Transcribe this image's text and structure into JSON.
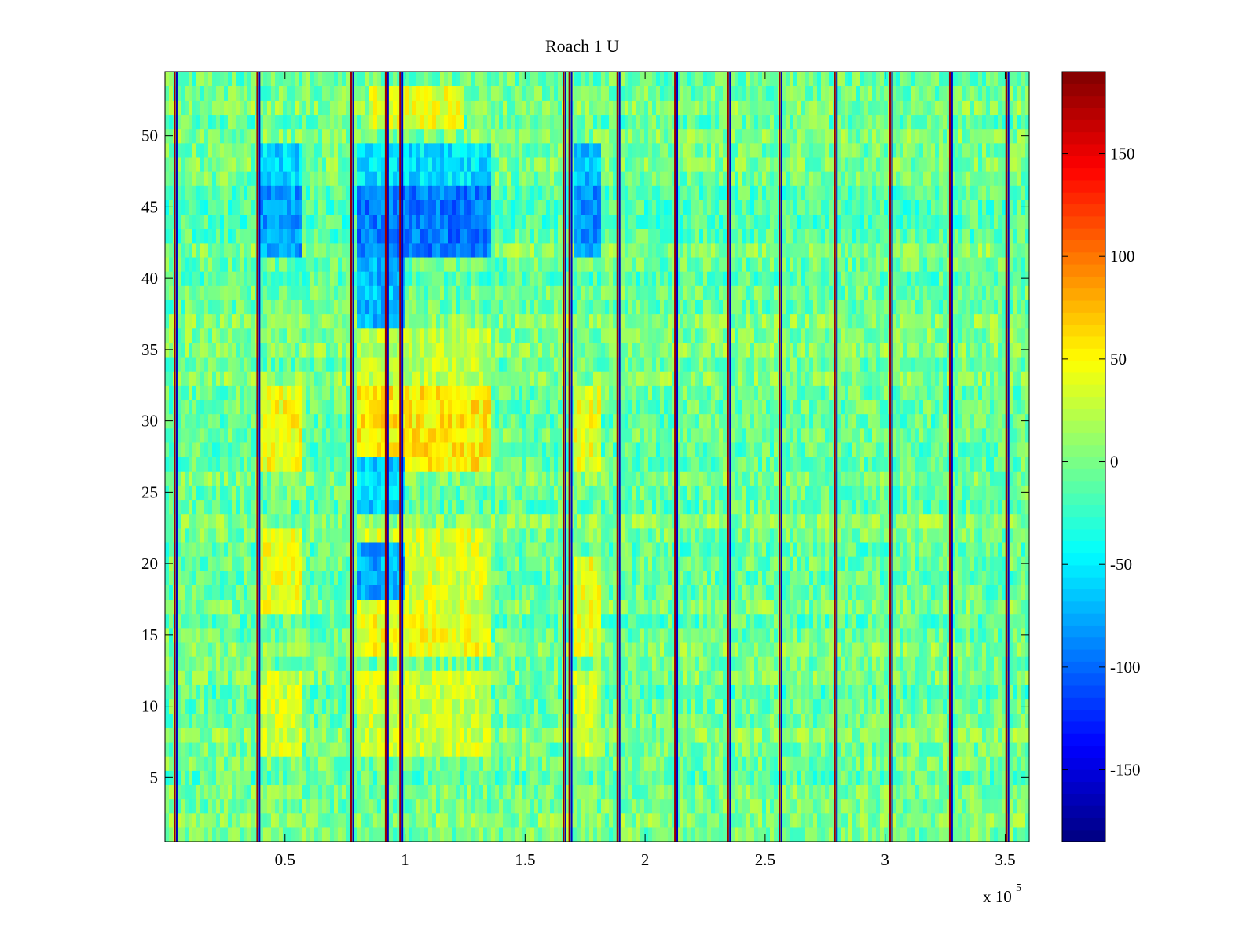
{
  "chart_data": {
    "type": "heatmap",
    "title": "Roach 1 U",
    "xlabel": "",
    "ylabel": "",
    "x_multiplier_label": "x 10",
    "x_multiplier_exponent": "5",
    "xlim": [
      0,
      3.6
    ],
    "ylim": [
      0.5,
      54.5
    ],
    "x_ticks": [
      0.5,
      1,
      1.5,
      2,
      2.5,
      3,
      3.5
    ],
    "x_tick_labels": [
      "0.5",
      "1",
      "1.5",
      "2",
      "2.5",
      "3",
      "3.5"
    ],
    "y_ticks": [
      5,
      10,
      15,
      20,
      25,
      30,
      35,
      40,
      45,
      50
    ],
    "y_tick_labels": [
      "5",
      "10",
      "15",
      "20",
      "25",
      "30",
      "35",
      "40",
      "45",
      "50"
    ],
    "rows": 54,
    "colormap": "jet",
    "clim": [
      -185,
      190
    ],
    "colorbar": {
      "ticks": [
        -150,
        -100,
        -50,
        0,
        50,
        100,
        150
      ],
      "tick_labels": [
        "-150",
        "-100",
        "-50",
        "0",
        "50",
        "100",
        "150"
      ]
    },
    "baseline_value": -5,
    "event_lines_x": [
      0.045,
      0.39,
      0.78,
      0.925,
      0.985,
      1.665,
      1.69,
      1.89,
      2.13,
      2.35,
      2.565,
      2.795,
      3.025,
      3.275,
      3.51
    ],
    "regions": [
      {
        "x": [
          0.4,
          0.58
        ],
        "y": [
          27,
          32
        ],
        "value": 45
      },
      {
        "x": [
          0.4,
          0.58
        ],
        "y": [
          17,
          22
        ],
        "value": 40
      },
      {
        "x": [
          0.4,
          0.58
        ],
        "y": [
          7,
          12
        ],
        "value": 30
      },
      {
        "x": [
          0.4,
          0.58
        ],
        "y": [
          42,
          46
        ],
        "value": -80
      },
      {
        "x": [
          0.4,
          0.58
        ],
        "y": [
          47,
          49
        ],
        "value": -60
      },
      {
        "x": [
          0.8,
          1.35
        ],
        "y": [
          27,
          32
        ],
        "value": 55
      },
      {
        "x": [
          0.8,
          1.35
        ],
        "y": [
          17,
          22
        ],
        "value": 35
      },
      {
        "x": [
          0.8,
          1.35
        ],
        "y": [
          14,
          16
        ],
        "value": 45
      },
      {
        "x": [
          0.8,
          1.35
        ],
        "y": [
          7,
          12
        ],
        "value": 30
      },
      {
        "x": [
          0.8,
          1.35
        ],
        "y": [
          33,
          36
        ],
        "value": 25
      },
      {
        "x": [
          0.8,
          1.35
        ],
        "y": [
          42,
          46
        ],
        "value": -95
      },
      {
        "x": [
          0.8,
          1.0
        ],
        "y": [
          37,
          41
        ],
        "value": -70
      },
      {
        "x": [
          0.8,
          1.35
        ],
        "y": [
          47,
          49
        ],
        "value": -55
      },
      {
        "x": [
          0.8,
          1.0
        ],
        "y": [
          24,
          27
        ],
        "value": -60
      },
      {
        "x": [
          0.8,
          1.0
        ],
        "y": [
          18,
          21
        ],
        "value": -75
      },
      {
        "x": [
          0.85,
          1.25
        ],
        "y": [
          51,
          53
        ],
        "value": 40
      },
      {
        "x": [
          1.7,
          1.82
        ],
        "y": [
          27,
          32
        ],
        "value": 40
      },
      {
        "x": [
          1.7,
          1.82
        ],
        "y": [
          14,
          20
        ],
        "value": 40
      },
      {
        "x": [
          1.7,
          1.82
        ],
        "y": [
          7,
          12
        ],
        "value": 30
      },
      {
        "x": [
          1.7,
          1.82
        ],
        "y": [
          42,
          46
        ],
        "value": -85
      },
      {
        "x": [
          1.7,
          1.82
        ],
        "y": [
          47,
          49
        ],
        "value": -70
      }
    ]
  }
}
